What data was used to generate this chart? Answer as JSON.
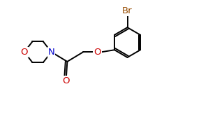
{
  "bg_color": "#ffffff",
  "line_color": "#000000",
  "atom_colors": {
    "O": "#cc0000",
    "N": "#0000cc",
    "Br": "#964B00",
    "C": "#000000"
  },
  "font_size_atom": 9.5,
  "figure_width": 2.88,
  "figure_height": 1.77,
  "dpi": 100
}
